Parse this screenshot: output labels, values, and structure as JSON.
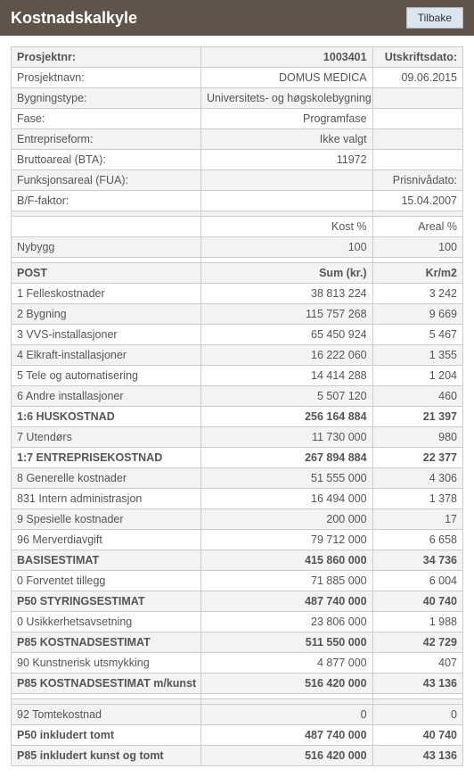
{
  "header": {
    "title": "Kostnadskalkyle",
    "back_label": "Tilbake"
  },
  "meta": {
    "proj_nr_label": "Prosjektnr:",
    "proj_nr": "1003401",
    "print_date_label": "Utskriftsdato:",
    "proj_name_label": "Prosjektnavn:",
    "proj_name": "DOMUS MEDICA",
    "print_date": "09.06.2015",
    "building_type_label": "Bygningstype:",
    "building_type": "Universitets- og høgskolebygning",
    "phase_label": "Fase:",
    "phase": "Programfase",
    "contract_label": "Entrepriseform:",
    "contract": "Ikke valgt",
    "bta_label": "Bruttoareal (BTA):",
    "bta": "11972",
    "fua_label": "Funksjonsareal (FUA):",
    "price_level_label": "Prisnivådato:",
    "bf_label": "B/F-faktor:",
    "price_level": "15.04.2007",
    "kost_pct_label": "Kost %",
    "areal_pct_label": "Areal %",
    "nybygg_label": "Nybygg",
    "nybygg_kost": "100",
    "nybygg_areal": "100"
  },
  "table": {
    "post_label": "POST",
    "sum_label": "Sum (kr.)",
    "krm2_label": "Kr/m2"
  },
  "rows": [
    {
      "l": "1 Felleskostnader",
      "s": "38 813 224",
      "k": "3 242",
      "bold": false,
      "shade": false
    },
    {
      "l": "2 Bygning",
      "s": "115 757 268",
      "k": "9 669",
      "bold": false,
      "shade": true
    },
    {
      "l": "3 VVS-installasjoner",
      "s": "65 450 924",
      "k": "5 467",
      "bold": false,
      "shade": false
    },
    {
      "l": "4 Elkraft-installasjoner",
      "s": "16 222 060",
      "k": "1 355",
      "bold": false,
      "shade": true
    },
    {
      "l": "5 Tele og automatisering",
      "s": "14 414 288",
      "k": "1 204",
      "bold": false,
      "shade": false
    },
    {
      "l": "6 Andre installasjoner",
      "s": "5 507 120",
      "k": "460",
      "bold": false,
      "shade": true
    },
    {
      "l": "1:6 HUSKOSTNAD",
      "s": "256 164 884",
      "k": "21 397",
      "bold": true,
      "shade": false
    },
    {
      "l": "7 Utendørs",
      "s": "11 730 000",
      "k": "980",
      "bold": false,
      "shade": true
    },
    {
      "l": "1:7 ENTREPRISEKOSTNAD",
      "s": "267 894 884",
      "k": "22 377",
      "bold": true,
      "shade": false
    },
    {
      "l": "8 Generelle kostnader",
      "s": "51 555 000",
      "k": "4 306",
      "bold": false,
      "shade": true
    },
    {
      "l": "831 Intern administrasjon",
      "s": "16 494 000",
      "k": "1 378",
      "bold": false,
      "shade": false
    },
    {
      "l": "9 Spesielle kostnader",
      "s": "200 000",
      "k": "17",
      "bold": false,
      "shade": true
    },
    {
      "l": "96 Merverdiavgift",
      "s": "79 712 000",
      "k": "6 658",
      "bold": false,
      "shade": false
    },
    {
      "l": "BASISESTIMAT",
      "s": "415 860 000",
      "k": "34 736",
      "bold": true,
      "shade": true
    },
    {
      "l": "0 Forventet tillegg",
      "s": "71 885 000",
      "k": "6 004",
      "bold": false,
      "shade": false
    },
    {
      "l": "P50 STYRINGSESTIMAT",
      "s": "487 740 000",
      "k": "40 740",
      "bold": true,
      "shade": true
    },
    {
      "l": "0 Usikkerhetsavsetning",
      "s": "23 806 000",
      "k": "1 988",
      "bold": false,
      "shade": false
    },
    {
      "l": "P85 KOSTNADSESTIMAT",
      "s": "511 550 000",
      "k": "42 729",
      "bold": true,
      "shade": true
    },
    {
      "l": "90 Kunstnerisk utsmykking",
      "s": "4 877 000",
      "k": "407",
      "bold": false,
      "shade": false
    },
    {
      "l": "P85 KOSTNADSESTIMAT m/kunst",
      "s": "516 420 000",
      "k": "43 136",
      "bold": true,
      "shade": true
    }
  ],
  "after_spacer": [
    {
      "l": "92 Tomtekostnad",
      "s": "0",
      "k": "0",
      "bold": false,
      "shade": true
    },
    {
      "l": "P50 inkludert tomt",
      "s": "487 740 000",
      "k": "40 740",
      "bold": true,
      "shade": false
    },
    {
      "l": "P85 inkludert kunst og tomt",
      "s": "516 420 000",
      "k": "43 136",
      "bold": true,
      "shade": true
    }
  ],
  "colors": {
    "header_bg": "#5f534a",
    "header_text": "#ffffff",
    "border": "#cccccc",
    "shade": "#f3f3f3",
    "btn_bg": "#dce6ef"
  }
}
